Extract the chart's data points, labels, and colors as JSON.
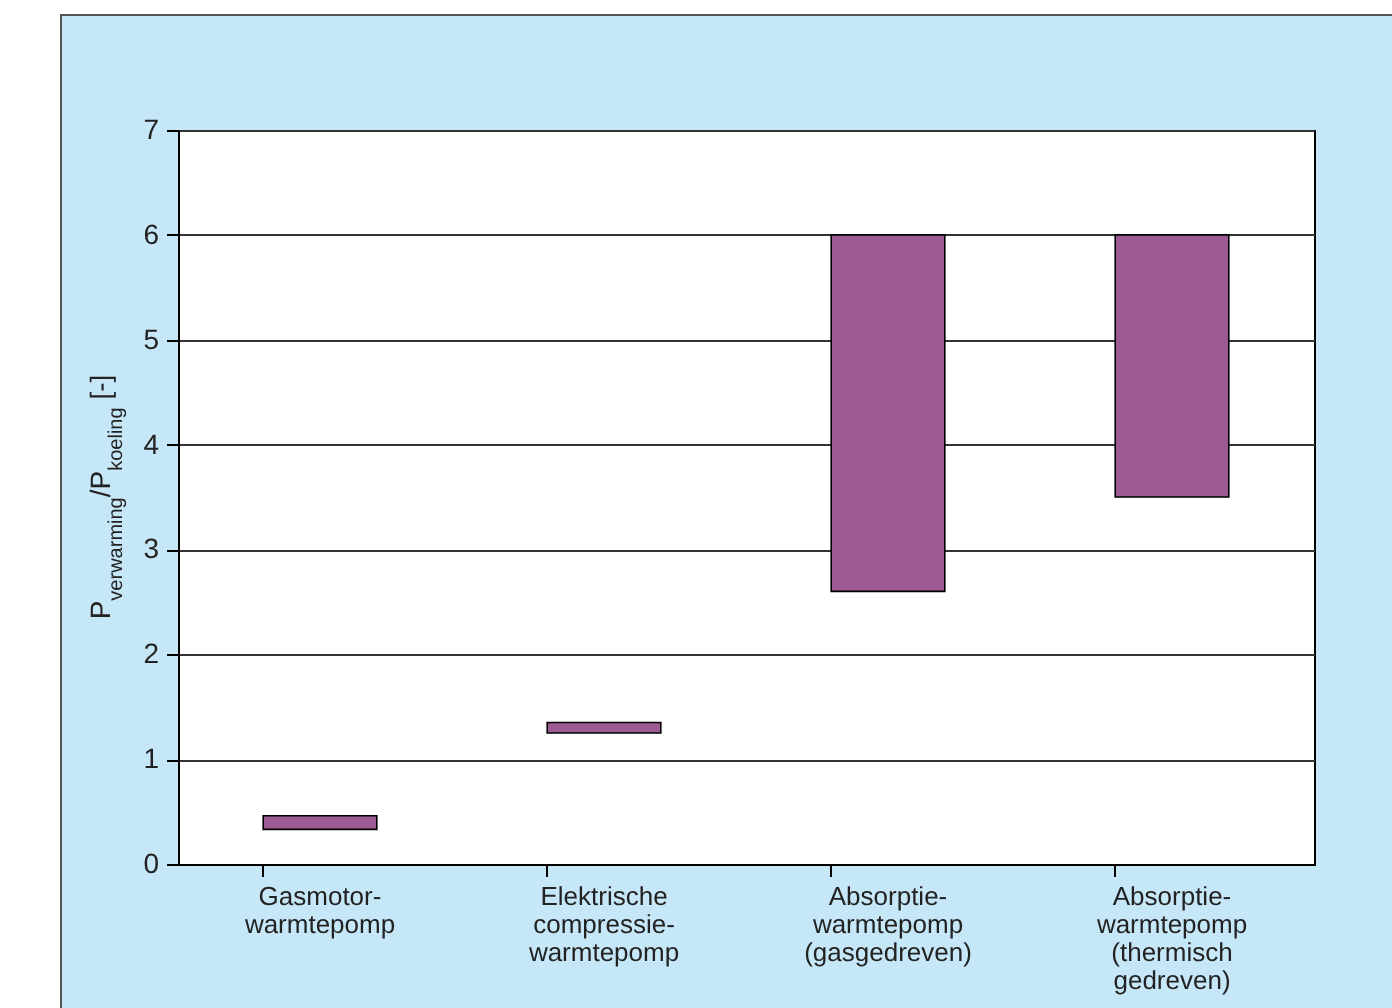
{
  "chart_data": {
    "type": "bar",
    "ylabel": "P$_{verwarming}$/P$_{koeling}$ [-]",
    "categories": [
      "Gasmotor-\nwarmtepomp",
      "Elektrische\ncompressie-\nwarmtepomp",
      "Absorptie-\nwarmtepomp\n(gasgedreven)",
      "Absorptie-\nwarmtepomp\n(thermisch\ngedreven)"
    ],
    "base": [
      0.33,
      1.25,
      2.6,
      3.5
    ],
    "values": [
      0.13,
      0.1,
      3.4,
      2.5
    ],
    "color": "#9e5a92",
    "ylim": [
      0,
      7
    ],
    "yticks": [
      0,
      1,
      2,
      3,
      4,
      5,
      6,
      7
    ],
    "grid": "y"
  }
}
